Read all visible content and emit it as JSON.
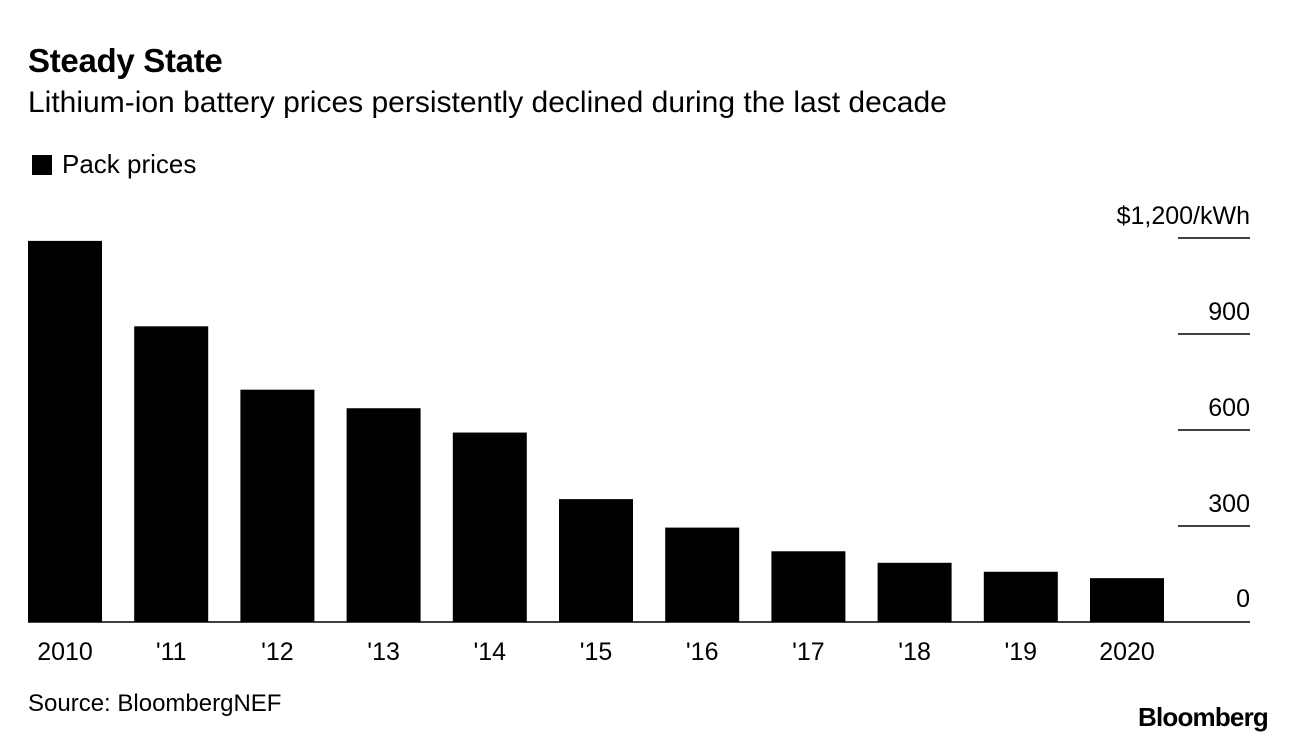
{
  "header": {
    "title": "Steady State",
    "subtitle": "Lithium-ion battery prices persistently declined during the last decade"
  },
  "footer": {
    "source": "Source: BloombergNEF",
    "logo": "Bloomberg"
  },
  "chart_data": {
    "type": "bar",
    "categories": [
      "2010",
      "'11",
      "'12",
      "'13",
      "'14",
      "'15",
      "'16",
      "'17",
      "'18",
      "'19",
      "2020"
    ],
    "series": [
      {
        "name": "Pack prices",
        "color": "#000000",
        "values": [
          1191,
          924,
          726,
          668,
          592,
          384,
          295,
          221,
          185,
          157,
          137
        ]
      }
    ],
    "ylabel": "",
    "y_unit_label": "$1,200/kWh",
    "yticks": [
      0,
      300,
      600,
      900,
      1200
    ],
    "ytick_labels": [
      "0",
      "300",
      "600",
      "900",
      "$1,200/kWh"
    ],
    "ylim": [
      0,
      1200
    ],
    "legend_position": "top-left",
    "axis_position": "right",
    "grid": false
  }
}
